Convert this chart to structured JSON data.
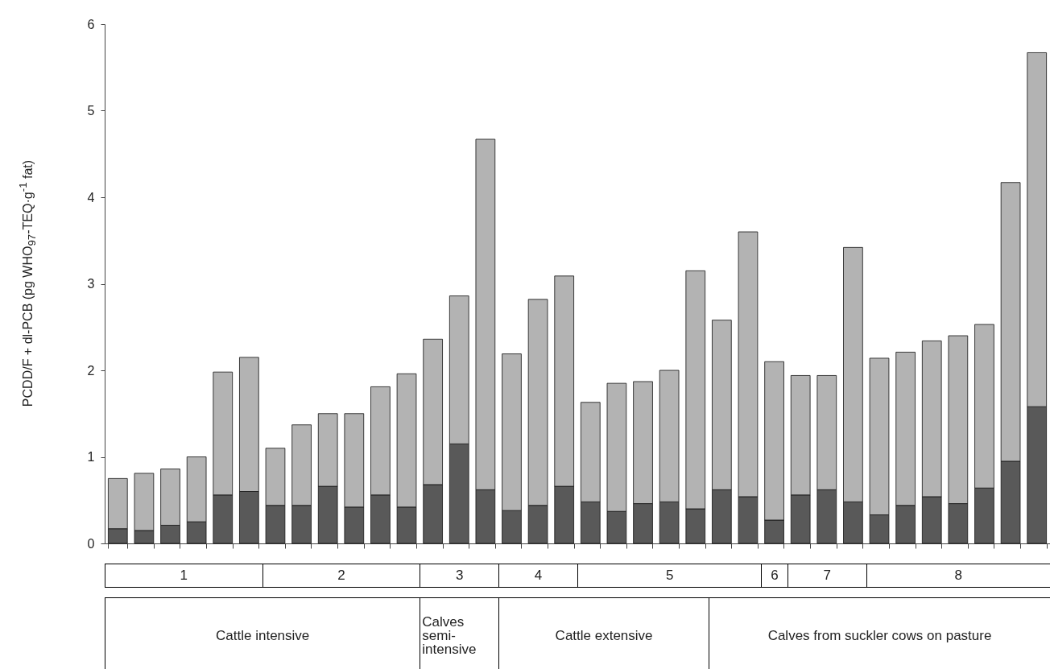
{
  "chart_data": {
    "type": "bar",
    "stacked": true,
    "ylabel": "PCDD/F + dl-PCB (pg WHO$_{97}$-TEQ·g$^{-1}$ fat)",
    "categories": [
      null,
      null,
      null,
      null,
      null,
      null,
      null,
      null,
      null,
      null,
      null,
      null,
      null,
      null,
      null,
      null,
      null,
      null,
      null,
      null,
      null,
      null,
      null,
      null,
      null,
      null,
      null,
      null,
      null,
      null,
      null,
      null,
      null,
      null,
      null,
      null
    ],
    "series": [
      {
        "color": "#595959",
        "values": [
          0.17,
          0.15,
          0.21,
          0.25,
          0.56,
          0.6,
          0.44,
          0.44,
          0.66,
          0.42,
          0.56,
          0.42,
          0.68,
          1.15,
          0.62,
          0.38,
          0.44,
          0.66,
          0.48,
          0.37,
          0.46,
          0.48,
          0.4,
          0.62,
          0.54,
          0.27,
          0.56,
          0.62,
          0.48,
          0.33,
          0.44,
          0.54,
          0.46,
          0.64,
          0.95,
          1.58
        ]
      },
      {
        "color": "#b3b3b3",
        "values": [
          0.58,
          0.66,
          0.65,
          0.75,
          1.42,
          1.55,
          0.66,
          0.93,
          0.84,
          1.08,
          1.25,
          1.54,
          1.68,
          1.71,
          4.05,
          1.81,
          2.38,
          2.43,
          1.15,
          1.48,
          1.41,
          1.52,
          2.75,
          1.96,
          3.06,
          1.83,
          1.38,
          1.32,
          2.94,
          1.81,
          1.77,
          1.8,
          1.94,
          1.89,
          3.22,
          4.09
        ]
      }
    ],
    "ylim": [
      0,
      6
    ],
    "yticks": [
      0,
      1,
      2,
      3,
      4,
      5,
      6
    ],
    "grid": false,
    "legend": false,
    "annotations": [
      "1",
      "2",
      "3",
      "4",
      "5",
      "6",
      "7",
      "8",
      "Cattle intensive",
      "Calves semi-intensive",
      "Cattle extensive",
      "Calves from suckler cows on pasture"
    ]
  }
}
